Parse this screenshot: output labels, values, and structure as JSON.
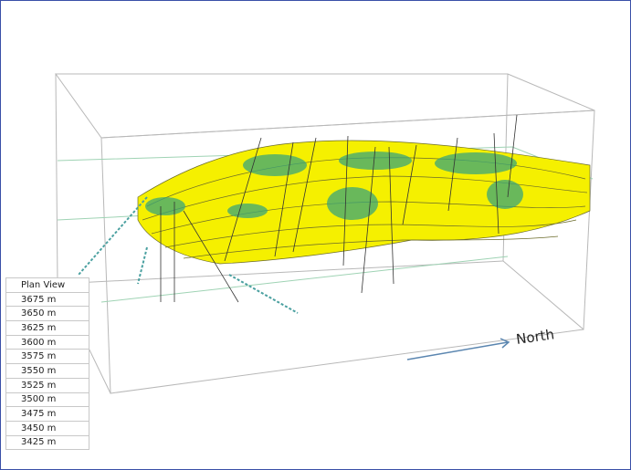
{
  "panel": {
    "title": "Plan View",
    "levels": [
      "3675 m",
      "3650 m",
      "3625 m",
      "3600 m",
      "3575 m",
      "3550 m",
      "3525 m",
      "3500 m",
      "3475 m",
      "3450 m",
      "3425 m"
    ]
  },
  "annotation": "North"
}
